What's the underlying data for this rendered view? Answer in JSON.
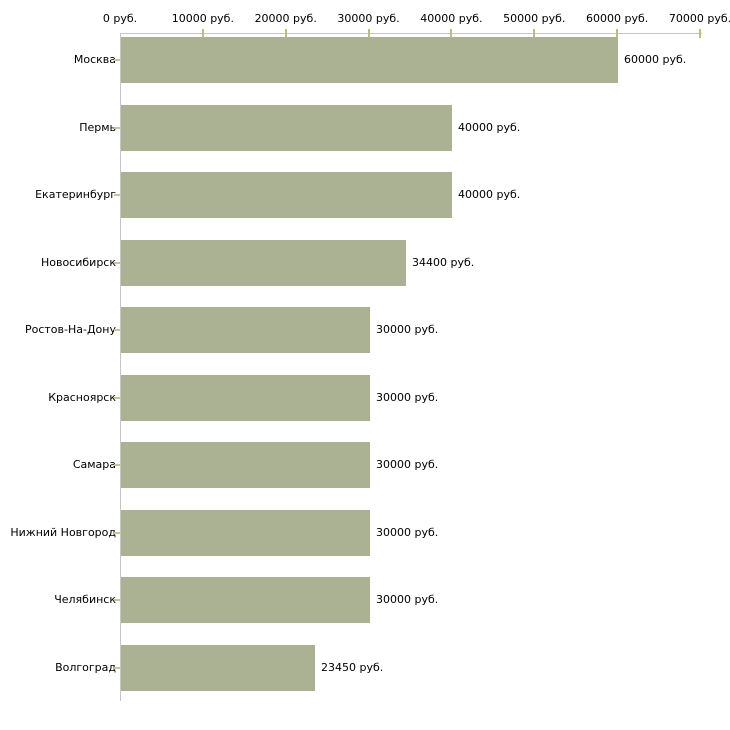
{
  "chart_data": {
    "type": "bar",
    "orientation": "horizontal",
    "title": "",
    "xlabel": "",
    "ylabel": "",
    "categories": [
      "Москва",
      "Пермь",
      "Екатеринбург",
      "Новосибирск",
      "Ростов-На-Дону",
      "Красноярск",
      "Самара",
      "Нижний Новгород",
      "Челябинск",
      "Волгоград"
    ],
    "values": [
      60000,
      40000,
      40000,
      34400,
      30000,
      30000,
      30000,
      30000,
      30000,
      23450
    ],
    "value_labels": [
      "60000 руб.",
      "40000 руб.",
      "40000 руб.",
      "34400 руб.",
      "30000 руб.",
      "30000 руб.",
      "30000 руб.",
      "30000 руб.",
      "30000 руб.",
      "23450 руб."
    ],
    "xlim": [
      0,
      70000
    ],
    "x_ticks": [
      0,
      10000,
      20000,
      30000,
      40000,
      50000,
      60000,
      70000
    ],
    "x_tick_labels": [
      "0 руб.",
      "10000 руб.",
      "20000 руб.",
      "30000 руб.",
      "40000 руб.",
      "50000 руб.",
      "60000 руб.",
      "70000 руб."
    ],
    "grid": false,
    "legend": false,
    "axis_position": "top-left",
    "colors": {
      "bar": "#abb294",
      "axis_line": "#c6c6c6",
      "x_tick_mark": "#bcbc85",
      "y_tick_mark": "#c6c69c",
      "text": "#000000",
      "background": "#ffffff"
    }
  }
}
